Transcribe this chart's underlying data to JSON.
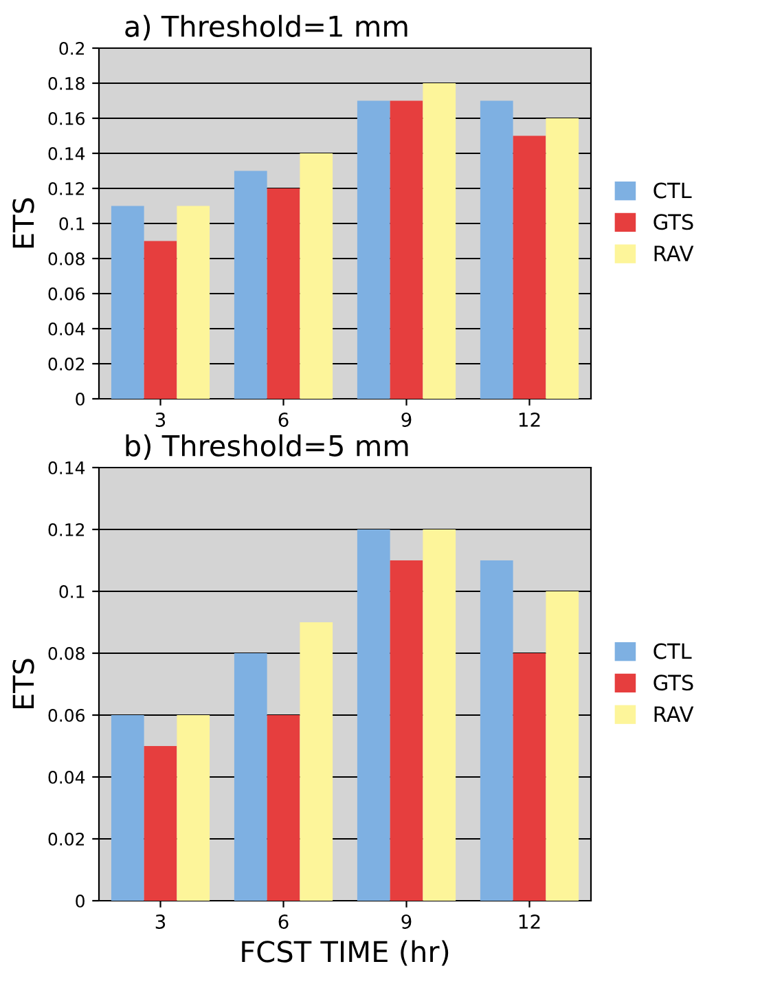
{
  "chart_data": [
    {
      "type": "bar",
      "title": "a) Threshold=1 mm",
      "ylabel": "ETS",
      "categories": [
        "3",
        "6",
        "9",
        "12"
      ],
      "series": [
        {
          "name": "CTL",
          "color": "#7eb0e2",
          "values": [
            0.11,
            0.13,
            0.17,
            0.17
          ]
        },
        {
          "name": "GTS",
          "color": "#e63e3e",
          "values": [
            0.09,
            0.12,
            0.17,
            0.15
          ]
        },
        {
          "name": "RAV",
          "color": "#fdf59a",
          "values": [
            0.11,
            0.14,
            0.18,
            0.16
          ]
        }
      ],
      "ylim": [
        0,
        0.2
      ],
      "yticks": [
        0,
        0.02,
        0.04,
        0.06,
        0.08,
        0.1,
        0.12,
        0.14,
        0.16,
        0.18,
        0.2
      ],
      "grid": "y",
      "legend": "right"
    },
    {
      "type": "bar",
      "title": "b) Threshold=5 mm",
      "ylabel": "ETS",
      "xlabel": "FCST TIME (hr)",
      "categories": [
        "3",
        "6",
        "9",
        "12"
      ],
      "series": [
        {
          "name": "CTL",
          "color": "#7eb0e2",
          "values": [
            0.06,
            0.08,
            0.12,
            0.11
          ]
        },
        {
          "name": "GTS",
          "color": "#e63e3e",
          "values": [
            0.05,
            0.06,
            0.11,
            0.08
          ]
        },
        {
          "name": "RAV",
          "color": "#fdf59a",
          "values": [
            0.06,
            0.09,
            0.12,
            0.1
          ]
        }
      ],
      "ylim": [
        0,
        0.14
      ],
      "yticks": [
        0,
        0.02,
        0.04,
        0.06,
        0.08,
        0.1,
        0.12,
        0.14
      ],
      "grid": "y",
      "legend": "right"
    }
  ]
}
